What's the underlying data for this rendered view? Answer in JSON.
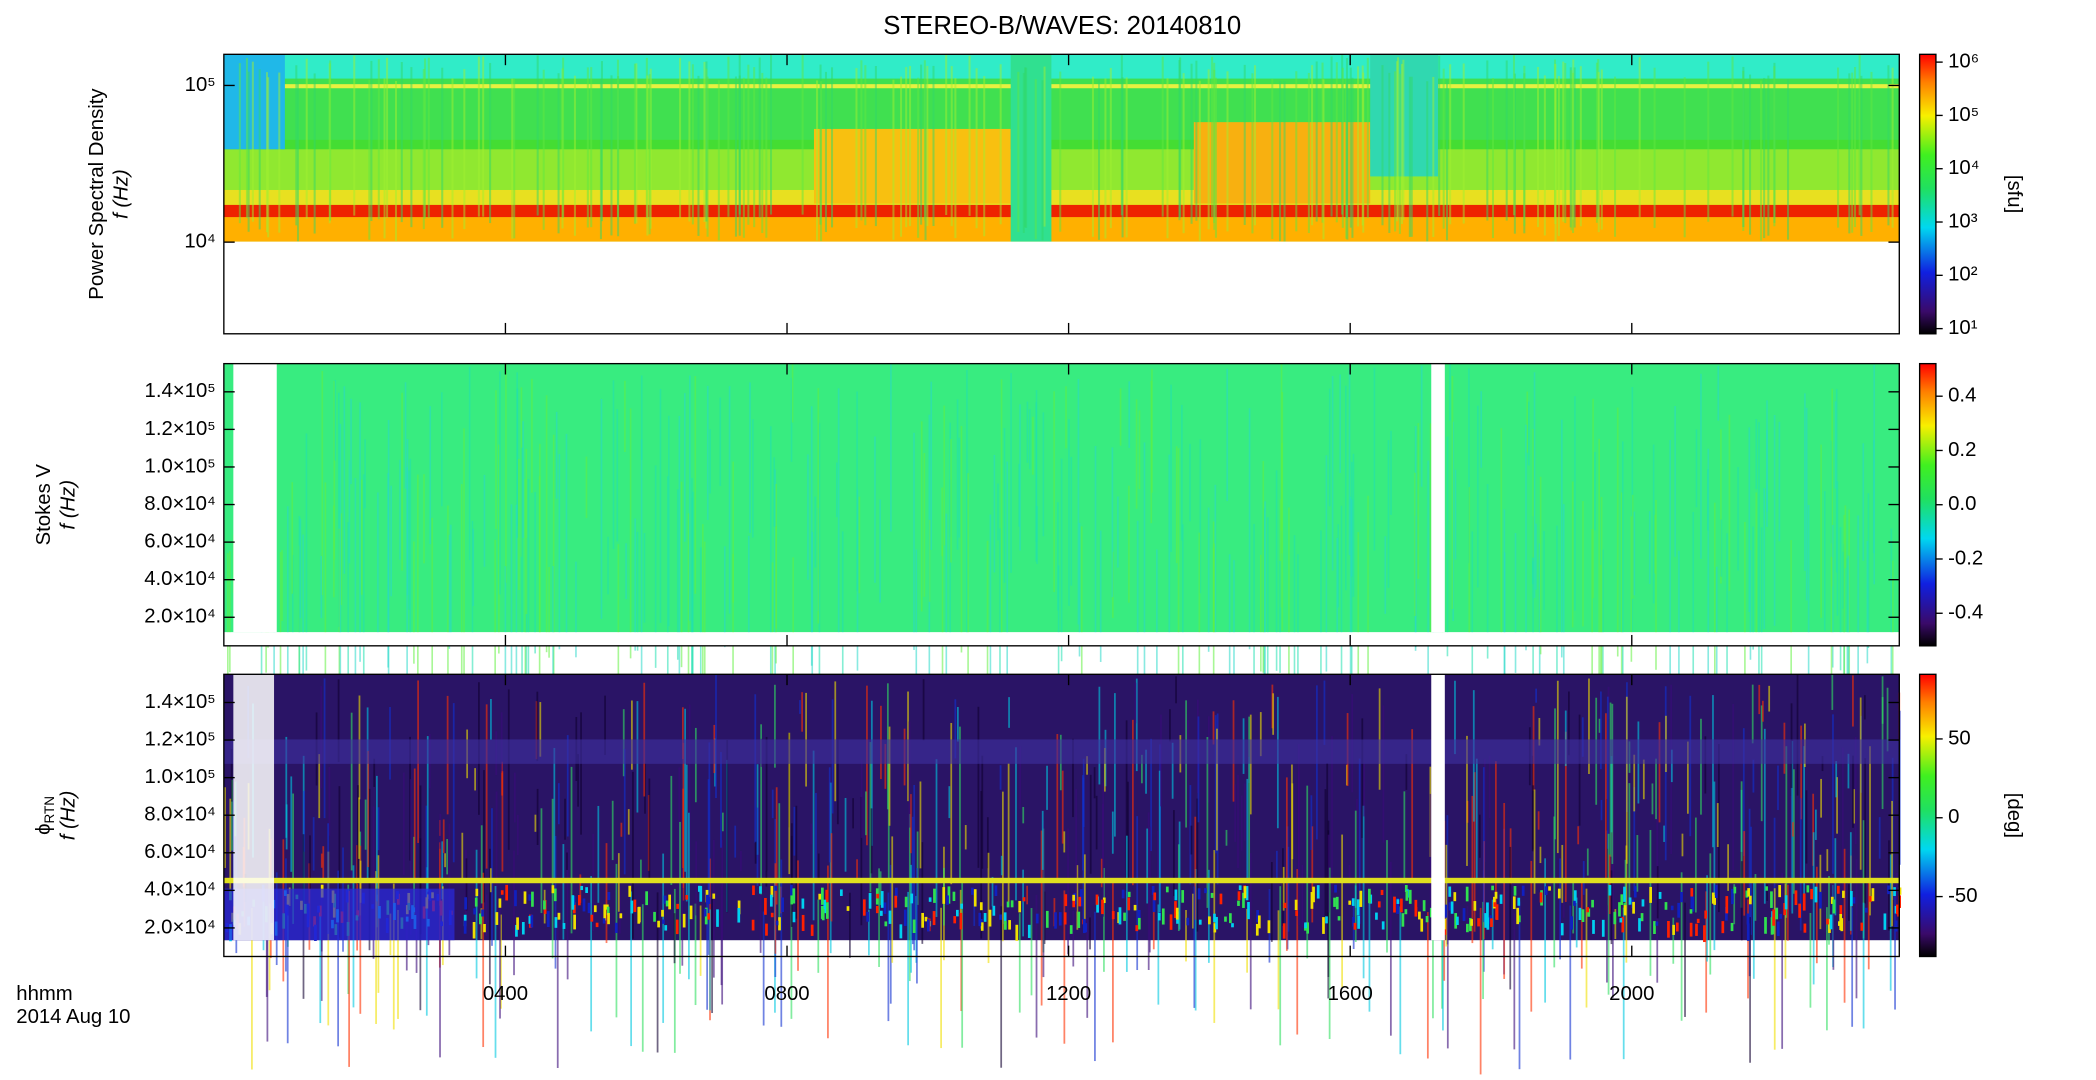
{
  "chart_data": [
    {
      "type": "spectrogram",
      "title": "STEREO-B/WAVES: 20140810",
      "ylabel": "Power Spectral Density",
      "ylabel_unit": "f (Hz)",
      "ylog": true,
      "ylim": [
        2600,
        158000
      ],
      "yticks": [
        {
          "value": 10000,
          "label": "10⁴"
        },
        {
          "value": 100000,
          "label": "10⁵"
        }
      ],
      "zlog": true,
      "zlim": [
        8,
        1400000
      ],
      "zticks": [
        {
          "value": 10,
          "label": "10¹"
        },
        {
          "value": 100,
          "label": "10²"
        },
        {
          "value": 1000,
          "label": "10³"
        },
        {
          "value": 10000,
          "label": "10⁴"
        },
        {
          "value": 100000,
          "label": "10⁵"
        },
        {
          "value": 1000000,
          "label": "10⁶"
        }
      ],
      "zlabel": "[sfu]"
    },
    {
      "type": "spectrogram",
      "ylabel": "Stokes V",
      "ylabel_unit": "f (Hz)",
      "ylog": false,
      "ylim": [
        4800,
        155000
      ],
      "yticks": [
        {
          "value": 20000,
          "label": "2.0×10⁴"
        },
        {
          "value": 40000,
          "label": "4.0×10⁴"
        },
        {
          "value": 60000,
          "label": "6.0×10⁴"
        },
        {
          "value": 80000,
          "label": "8.0×10⁴"
        },
        {
          "value": 100000,
          "label": "1.0×10⁵"
        },
        {
          "value": 120000,
          "label": "1.2×10⁵"
        },
        {
          "value": 140000,
          "label": "1.4×10⁵"
        }
      ],
      "zlog": false,
      "zlim": [
        -0.52,
        0.52
      ],
      "zticks": [
        -0.4,
        -0.2,
        {
          "value": 0,
          "label": "0.0"
        },
        0.2,
        0.4
      ]
    },
    {
      "type": "spectrogram",
      "ylabel": "ϕ",
      "ylabel_sub": "RTN",
      "ylabel_unit": "f (Hz)",
      "ylog": false,
      "ylim": [
        4800,
        155000
      ],
      "yticks": [
        {
          "value": 20000,
          "label": "2.0×10⁴"
        },
        {
          "value": 40000,
          "label": "4.0×10⁴"
        },
        {
          "value": 60000,
          "label": "6.0×10⁴"
        },
        {
          "value": 80000,
          "label": "8.0×10⁴"
        },
        {
          "value": 100000,
          "label": "1.0×10⁵"
        },
        {
          "value": 120000,
          "label": "1.2×10⁵"
        },
        {
          "value": 140000,
          "label": "1.4×10⁵"
        }
      ],
      "zlog": false,
      "zlim": [
        -88,
        91
      ],
      "zticks": [
        -50,
        0,
        50
      ],
      "zlabel": "[deg]",
      "xlim": [
        0,
        23.8
      ],
      "xticks": [
        {
          "value": 4,
          "label": "0400"
        },
        {
          "value": 8,
          "label": "0800"
        },
        {
          "value": 12,
          "label": "1200"
        },
        {
          "value": 16,
          "label": "1600"
        },
        {
          "value": 20,
          "label": "2000"
        }
      ],
      "xlabel": "hhmm",
      "date_label": "2014 Aug 10"
    }
  ]
}
